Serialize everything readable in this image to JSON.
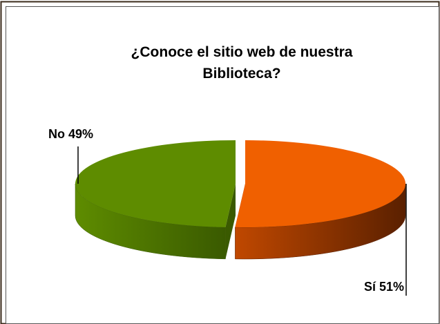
{
  "chart_data": {
    "type": "pie",
    "title": "¿Conoce el sitio  web de nuestra Biblioteca?",
    "categories": [
      "Sí",
      "No"
    ],
    "values": [
      51,
      49
    ],
    "value_labels": [
      "51%",
      "49%"
    ],
    "colors": [
      "#f06000",
      "#5e8c00"
    ],
    "side_colors": [
      "#5a2000",
      "#3a5a00"
    ]
  }
}
